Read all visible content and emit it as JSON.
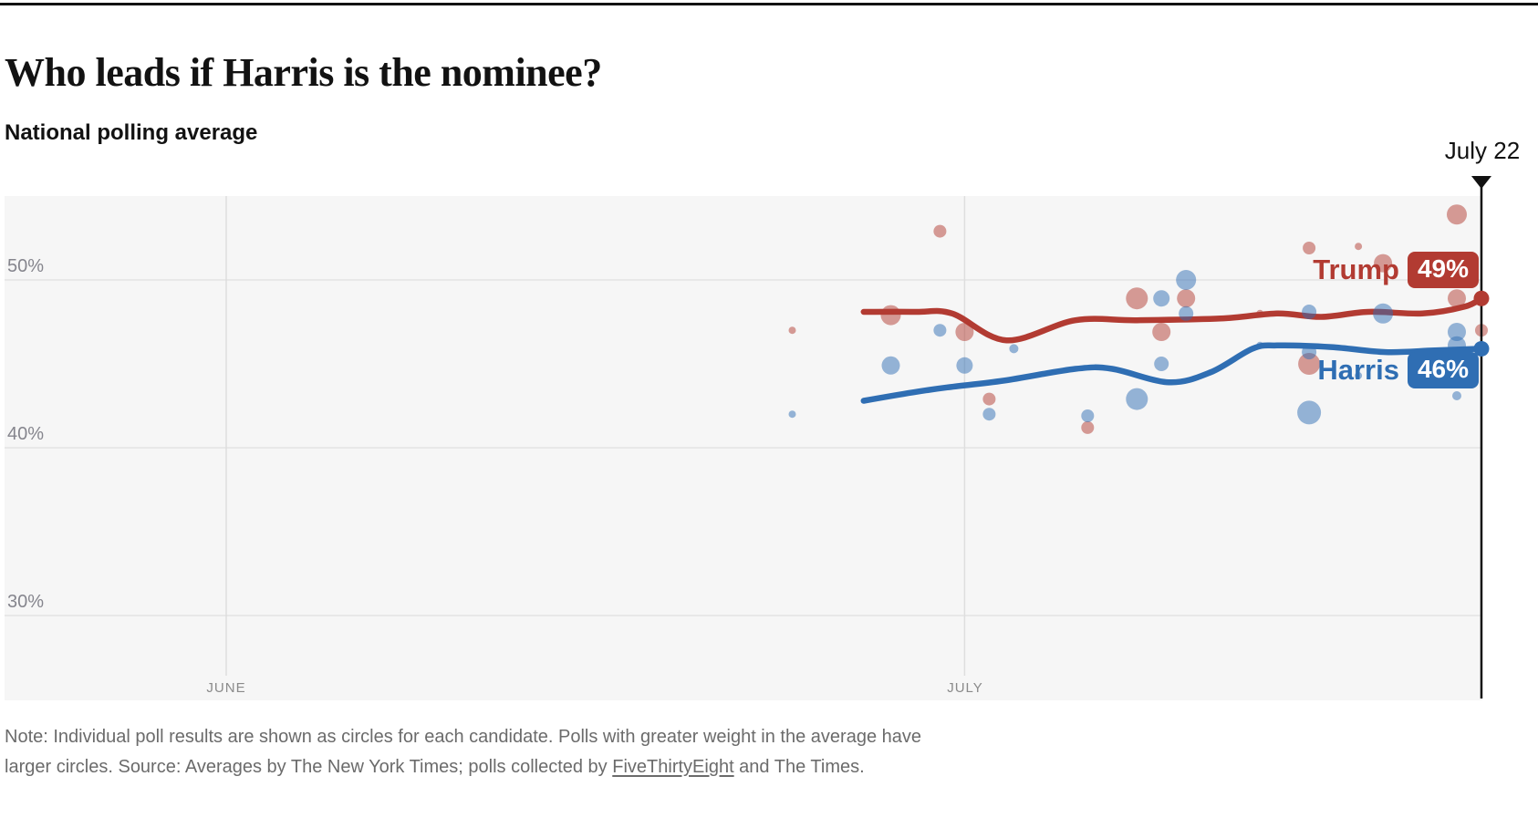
{
  "page": {
    "title": "Who leads if Harris is the nominee?",
    "subtitle": "National polling average"
  },
  "chart_data": {
    "type": "line",
    "title": "Who leads if Harris is the nominee?",
    "subtitle": "National polling average",
    "x_axis": {
      "unit": "days since June 1",
      "ticks": [
        {
          "label": "JUNE",
          "day": 0
        },
        {
          "label": "JULY",
          "day": 30
        }
      ],
      "cursor": {
        "label": "July 22",
        "day": 51
      }
    },
    "y_axis": {
      "range": [
        25,
        55
      ],
      "grid": true,
      "ticks": [
        {
          "label": "50%",
          "value": 50
        },
        {
          "label": "40%",
          "value": 40
        },
        {
          "label": "30%",
          "value": 30
        }
      ]
    },
    "legend_position": "end-of-line labels",
    "series": [
      {
        "name": "Trump",
        "end_label": "49%",
        "end_value": 48.9,
        "color": "#b23b32",
        "poll_dot_opacity": 0.5,
        "trend": [
          [
            25.9,
            48.1
          ],
          [
            28,
            48.1
          ],
          [
            29.5,
            48.0
          ],
          [
            31.7,
            46.4
          ],
          [
            34.5,
            47.6
          ],
          [
            37,
            47.6
          ],
          [
            40.4,
            47.7
          ],
          [
            42.7,
            48.0
          ],
          [
            44.5,
            47.8
          ],
          [
            46.4,
            48.1
          ],
          [
            48.6,
            48.0
          ],
          [
            50.3,
            48.4
          ],
          [
            51,
            48.9
          ]
        ],
        "polls": [
          [
            23,
            47.0,
            4
          ],
          [
            27,
            47.9,
            11
          ],
          [
            29,
            52.9,
            7
          ],
          [
            30,
            46.9,
            10
          ],
          [
            31,
            42.9,
            7
          ],
          [
            35,
            41.2,
            7
          ],
          [
            37,
            48.9,
            12
          ],
          [
            38,
            46.9,
            10
          ],
          [
            39,
            48.9,
            10
          ],
          [
            42,
            48.0,
            4
          ],
          [
            44,
            51.9,
            7
          ],
          [
            44,
            45.0,
            12
          ],
          [
            46,
            52.0,
            4
          ],
          [
            47,
            51.0,
            10
          ],
          [
            50,
            53.9,
            11
          ],
          [
            50,
            48.9,
            10
          ],
          [
            51,
            47.0,
            7
          ]
        ]
      },
      {
        "name": "Harris",
        "end_label": "46%",
        "end_value": 45.9,
        "color": "#2f6eb3",
        "poll_dot_opacity": 0.5,
        "trend": [
          [
            25.9,
            42.8
          ],
          [
            27.9,
            43.3
          ],
          [
            29.3,
            43.6
          ],
          [
            31.6,
            44.0
          ],
          [
            34.5,
            44.7
          ],
          [
            36,
            44.7
          ],
          [
            38.3,
            43.9
          ],
          [
            40,
            44.5
          ],
          [
            41.7,
            45.9
          ],
          [
            42.7,
            46.1
          ],
          [
            44.9,
            46.0
          ],
          [
            47.1,
            45.7
          ],
          [
            49.1,
            45.8
          ],
          [
            51,
            45.9
          ]
        ],
        "polls": [
          [
            23,
            42.0,
            4
          ],
          [
            27,
            44.9,
            10
          ],
          [
            29,
            47.0,
            7
          ],
          [
            30,
            44.9,
            9
          ],
          [
            31,
            42.0,
            7
          ],
          [
            32,
            45.9,
            5
          ],
          [
            35,
            41.9,
            7
          ],
          [
            37,
            42.9,
            12
          ],
          [
            38,
            48.9,
            9
          ],
          [
            38,
            45.0,
            8
          ],
          [
            39,
            50.0,
            11
          ],
          [
            39,
            48.0,
            8
          ],
          [
            42,
            46.1,
            4
          ],
          [
            44,
            48.1,
            8
          ],
          [
            44,
            45.7,
            8
          ],
          [
            44,
            42.1,
            13
          ],
          [
            46,
            44.3,
            4
          ],
          [
            47,
            48.0,
            11
          ],
          [
            50,
            46.9,
            10
          ],
          [
            50,
            46.1,
            10
          ],
          [
            50,
            43.1,
            5
          ]
        ]
      }
    ]
  },
  "note": {
    "line1": "Note: Individual poll results are shown as circles for each candidate. Polls with greater weight in the average have",
    "line2_pre": "larger circles. Source: Averages by The New York Times; polls collected by ",
    "link": "FiveThirtyEight",
    "line2_post": " and The Times."
  }
}
